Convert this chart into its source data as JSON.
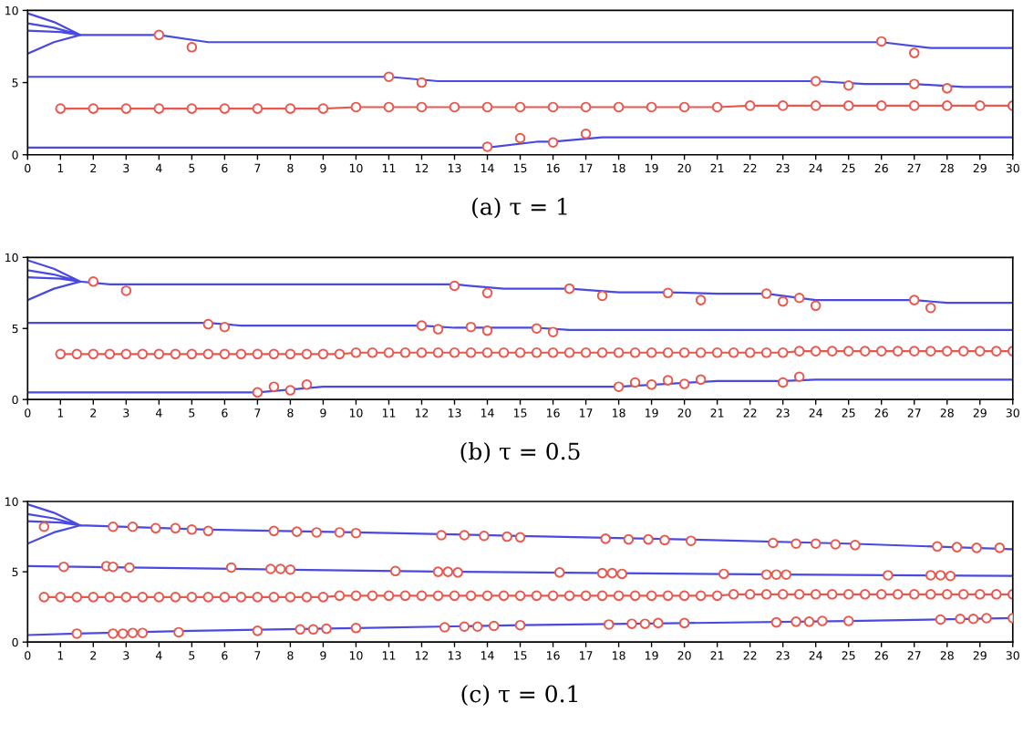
{
  "chart_data": [
    {
      "type": "line",
      "xlabel": "(a) τ = 1",
      "xlim": [
        0,
        30
      ],
      "xticks": [
        0,
        1,
        2,
        3,
        4,
        5,
        6,
        7,
        8,
        9,
        10,
        11,
        12,
        13,
        14,
        15,
        16,
        17,
        18,
        19,
        20,
        21,
        22,
        23,
        24,
        25,
        26,
        27,
        28,
        29,
        30
      ],
      "ylim": [
        0,
        10
      ],
      "yticks": [
        0,
        5,
        10
      ],
      "grid": false,
      "legend": false,
      "series": [
        {
          "color": "#4a4ae0",
          "marker": "none",
          "x": [
            0,
            0.8,
            1.6,
            null,
            0,
            0.8,
            1.6,
            null,
            0,
            1,
            1.6,
            null,
            0,
            0.8,
            1.6,
            null,
            1.6,
            4,
            5.5,
            26,
            27.5,
            30,
            null,
            0,
            11,
            12.5,
            24,
            25.5,
            27,
            28.5,
            30,
            null,
            0,
            14,
            15.5,
            16,
            17.5,
            30
          ],
          "values": [
            9.8,
            9.2,
            8.3,
            null,
            9.1,
            8.8,
            8.3,
            null,
            8.6,
            8.5,
            8.3,
            null,
            7.0,
            7.8,
            8.3,
            null,
            8.3,
            8.3,
            7.8,
            7.8,
            7.4,
            7.4,
            null,
            5.4,
            5.4,
            5.1,
            5.1,
            4.9,
            4.9,
            4.7,
            4.7,
            null,
            0.5,
            0.5,
            0.9,
            0.9,
            1.2,
            1.2
          ]
        },
        {
          "color": "#e8584f",
          "marker": "circle",
          "x": [
            1,
            2,
            3,
            4,
            5,
            6,
            7,
            8,
            9,
            10,
            11,
            12,
            13,
            14,
            15,
            16,
            17,
            18,
            19,
            20,
            21,
            22,
            23,
            24,
            25,
            26,
            27,
            28,
            29,
            30
          ],
          "values": [
            3.2,
            3.2,
            3.2,
            3.2,
            3.2,
            3.2,
            3.2,
            3.2,
            3.2,
            3.3,
            3.3,
            3.3,
            3.3,
            3.3,
            3.3,
            3.3,
            3.3,
            3.3,
            3.3,
            3.3,
            3.3,
            3.4,
            3.4,
            3.4,
            3.4,
            3.4,
            3.4,
            3.4,
            3.4,
            3.4
          ]
        },
        {
          "type": "scatter",
          "color": "#e8584f",
          "marker": "circle",
          "x": [
            4,
            5,
            11,
            12,
            14,
            15,
            16,
            17,
            24,
            25,
            26,
            27,
            27,
            28
          ],
          "values": [
            8.3,
            7.45,
            5.4,
            5.0,
            0.55,
            1.15,
            0.85,
            1.45,
            5.1,
            4.8,
            7.85,
            7.05,
            4.9,
            4.6
          ]
        }
      ]
    },
    {
      "type": "line",
      "xlabel": "(b) τ = 0.5",
      "xlim": [
        0,
        30
      ],
      "xticks": [
        0,
        1,
        2,
        3,
        4,
        5,
        6,
        7,
        8,
        9,
        10,
        11,
        12,
        13,
        14,
        15,
        16,
        17,
        18,
        19,
        20,
        21,
        22,
        23,
        24,
        25,
        26,
        27,
        28,
        29,
        30
      ],
      "ylim": [
        0,
        10
      ],
      "yticks": [
        0,
        5,
        10
      ],
      "grid": false,
      "legend": false,
      "series": [
        {
          "color": "#4a4ae0",
          "marker": "none",
          "x": [
            0,
            0.8,
            1.6,
            null,
            0,
            0.8,
            1.6,
            null,
            0,
            1,
            1.6,
            null,
            0,
            0.8,
            1.6,
            null,
            1.6,
            2.5,
            13,
            14.5,
            16.5,
            18,
            19.5,
            21,
            22.5,
            24,
            27,
            28,
            30,
            null,
            0,
            5.5,
            6.5,
            12,
            13,
            15.5,
            16.5,
            30,
            null,
            0,
            7,
            9,
            18,
            21,
            23,
            24,
            30
          ],
          "values": [
            9.8,
            9.2,
            8.3,
            null,
            9.1,
            8.8,
            8.3,
            null,
            8.6,
            8.5,
            8.3,
            null,
            7.0,
            7.8,
            8.3,
            null,
            8.3,
            8.1,
            8.1,
            7.8,
            7.8,
            7.55,
            7.55,
            7.45,
            7.45,
            7.0,
            7.0,
            6.8,
            6.8,
            null,
            5.4,
            5.4,
            5.2,
            5.2,
            5.05,
            5.05,
            4.9,
            4.9,
            null,
            0.5,
            0.5,
            0.9,
            0.9,
            1.3,
            1.3,
            1.4,
            1.4
          ]
        },
        {
          "color": "#e8584f",
          "marker": "circle",
          "x": [
            1,
            1.5,
            2,
            2.5,
            3,
            3.5,
            4,
            4.5,
            5,
            5.5,
            6,
            6.5,
            7,
            7.5,
            8,
            8.5,
            9,
            9.5,
            10,
            10.5,
            11,
            11.5,
            12,
            12.5,
            13,
            13.5,
            14,
            14.5,
            15,
            15.5,
            16,
            16.5,
            17,
            17.5,
            18,
            18.5,
            19,
            19.5,
            20,
            20.5,
            21,
            21.5,
            22,
            22.5,
            23,
            23.5,
            24,
            24.5,
            25,
            25.5,
            26,
            26.5,
            27,
            27.5,
            28,
            28.5,
            29,
            29.5,
            30
          ],
          "values": [
            3.2,
            3.2,
            3.2,
            3.2,
            3.2,
            3.2,
            3.2,
            3.2,
            3.2,
            3.2,
            3.2,
            3.2,
            3.2,
            3.2,
            3.2,
            3.2,
            3.2,
            3.2,
            3.3,
            3.3,
            3.3,
            3.3,
            3.3,
            3.3,
            3.3,
            3.3,
            3.3,
            3.3,
            3.3,
            3.3,
            3.3,
            3.3,
            3.3,
            3.3,
            3.3,
            3.3,
            3.3,
            3.3,
            3.3,
            3.3,
            3.3,
            3.3,
            3.3,
            3.3,
            3.3,
            3.4,
            3.4,
            3.4,
            3.4,
            3.4,
            3.4,
            3.4,
            3.4,
            3.4,
            3.4,
            3.4,
            3.4,
            3.4,
            3.4
          ]
        },
        {
          "type": "scatter",
          "color": "#e8584f",
          "marker": "circle",
          "x": [
            2,
            3,
            13,
            14,
            16.5,
            17.5,
            19.5,
            20.5,
            22.5,
            23,
            23.5,
            24,
            27,
            27.5,
            5.5,
            6,
            12,
            12.5,
            13.5,
            14,
            15.5,
            16,
            7,
            7.5,
            8,
            8.5,
            18,
            18.5,
            19,
            19.5,
            20,
            20.5,
            23,
            23.5
          ],
          "values": [
            8.3,
            7.65,
            8.0,
            7.5,
            7.8,
            7.3,
            7.5,
            7.0,
            7.45,
            6.9,
            7.15,
            6.6,
            7.0,
            6.45,
            5.3,
            5.1,
            5.2,
            4.95,
            5.1,
            4.85,
            5.0,
            4.75,
            0.5,
            0.9,
            0.65,
            1.05,
            0.9,
            1.2,
            1.05,
            1.35,
            1.1,
            1.4,
            1.2,
            1.6
          ]
        }
      ]
    },
    {
      "type": "line",
      "xlabel": "(c) τ = 0.1",
      "xlim": [
        0,
        30
      ],
      "xticks": [
        0,
        1,
        2,
        3,
        4,
        5,
        6,
        7,
        8,
        9,
        10,
        11,
        12,
        13,
        14,
        15,
        16,
        17,
        18,
        19,
        20,
        21,
        22,
        23,
        24,
        25,
        26,
        27,
        28,
        29,
        30
      ],
      "ylim": [
        0,
        10
      ],
      "yticks": [
        0,
        5,
        10
      ],
      "grid": false,
      "legend": false,
      "series": [
        {
          "color": "#4a4ae0",
          "marker": "none",
          "x": [
            0,
            0.8,
            1.6,
            null,
            0,
            0.8,
            1.6,
            null,
            0,
            1,
            1.6,
            null,
            0,
            0.8,
            1.6,
            null,
            1.6,
            5.5,
            10,
            15,
            20,
            25,
            30,
            null,
            0,
            3,
            8,
            13,
            18,
            23,
            30,
            null,
            0,
            1.5,
            5,
            10,
            15,
            20,
            25,
            30
          ],
          "values": [
            9.8,
            9.2,
            8.3,
            null,
            9.1,
            8.8,
            8.3,
            null,
            8.6,
            8.5,
            8.3,
            null,
            7.0,
            7.8,
            8.3,
            null,
            8.3,
            8.0,
            7.8,
            7.55,
            7.3,
            7.0,
            6.6,
            null,
            5.4,
            5.3,
            5.15,
            5.0,
            4.9,
            4.8,
            4.7,
            null,
            0.5,
            0.6,
            0.8,
            1.0,
            1.2,
            1.35,
            1.5,
            1.7
          ]
        },
        {
          "color": "#e8584f",
          "marker": "circle",
          "x": [
            0.5,
            1,
            1.5,
            2,
            2.5,
            3,
            3.5,
            4,
            4.5,
            5,
            5.5,
            6,
            6.5,
            7,
            7.5,
            8,
            8.5,
            9,
            9.5,
            10,
            10.5,
            11,
            11.5,
            12,
            12.5,
            13,
            13.5,
            14,
            14.5,
            15,
            15.5,
            16,
            16.5,
            17,
            17.5,
            18,
            18.5,
            19,
            19.5,
            20,
            20.5,
            21,
            21.5,
            22,
            22.5,
            23,
            23.5,
            24,
            24.5,
            25,
            25.5,
            26,
            26.5,
            27,
            27.5,
            28,
            28.5,
            29,
            29.5,
            30
          ],
          "values": [
            3.2,
            3.2,
            3.2,
            3.2,
            3.2,
            3.2,
            3.2,
            3.2,
            3.2,
            3.2,
            3.2,
            3.2,
            3.2,
            3.2,
            3.2,
            3.2,
            3.2,
            3.2,
            3.3,
            3.3,
            3.3,
            3.3,
            3.3,
            3.3,
            3.3,
            3.3,
            3.3,
            3.3,
            3.3,
            3.3,
            3.3,
            3.3,
            3.3,
            3.3,
            3.3,
            3.3,
            3.3,
            3.3,
            3.3,
            3.3,
            3.3,
            3.3,
            3.4,
            3.4,
            3.4,
            3.4,
            3.4,
            3.4,
            3.4,
            3.4,
            3.4,
            3.4,
            3.4,
            3.4,
            3.4,
            3.4,
            3.4,
            3.4,
            3.4,
            3.4
          ]
        },
        {
          "type": "scatter",
          "color": "#e8584f",
          "marker": "circle",
          "x": [
            0.5,
            2.6,
            3.2,
            3.9,
            4.5,
            5.0,
            5.5,
            7.5,
            8.2,
            8.8,
            9.5,
            10.0,
            12.6,
            13.3,
            13.9,
            14.6,
            15.0,
            17.6,
            18.3,
            18.9,
            19.4,
            20.2,
            22.7,
            23.4,
            24.0,
            24.6,
            25.2,
            27.7,
            28.3,
            28.9,
            29.6,
            1.1,
            2.4,
            2.6,
            3.1,
            6.2,
            7.4,
            7.7,
            8.0,
            11.2,
            12.5,
            12.8,
            13.1,
            16.2,
            17.5,
            17.8,
            18.1,
            21.2,
            22.5,
            22.8,
            23.1,
            26.2,
            27.5,
            27.8,
            28.1,
            1.5,
            2.6,
            2.9,
            3.2,
            3.5,
            4.6,
            7.0,
            8.3,
            8.7,
            9.1,
            10.0,
            12.7,
            13.3,
            13.7,
            14.2,
            15.0,
            17.7,
            18.4,
            18.8,
            19.2,
            20.0,
            22.8,
            23.4,
            23.8,
            24.2,
            25.0,
            27.8,
            28.4,
            28.8,
            29.2,
            30.0
          ],
          "values": [
            8.2,
            8.2,
            8.2,
            8.1,
            8.1,
            8.0,
            7.9,
            7.9,
            7.85,
            7.8,
            7.8,
            7.75,
            7.6,
            7.6,
            7.55,
            7.5,
            7.45,
            7.35,
            7.3,
            7.3,
            7.25,
            7.2,
            7.05,
            7.0,
            7.0,
            6.95,
            6.9,
            6.8,
            6.75,
            6.7,
            6.7,
            5.35,
            5.4,
            5.35,
            5.3,
            5.3,
            5.2,
            5.2,
            5.15,
            5.05,
            5.0,
            5.0,
            4.95,
            4.95,
            4.9,
            4.9,
            4.85,
            4.85,
            4.8,
            4.8,
            4.8,
            4.75,
            4.75,
            4.75,
            4.7,
            0.6,
            0.6,
            0.6,
            0.65,
            0.65,
            0.7,
            0.8,
            0.9,
            0.9,
            0.95,
            1.0,
            1.05,
            1.1,
            1.1,
            1.15,
            1.2,
            1.25,
            1.3,
            1.3,
            1.35,
            1.35,
            1.4,
            1.45,
            1.45,
            1.5,
            1.5,
            1.6,
            1.65,
            1.65,
            1.7,
            1.7
          ]
        }
      ]
    }
  ]
}
